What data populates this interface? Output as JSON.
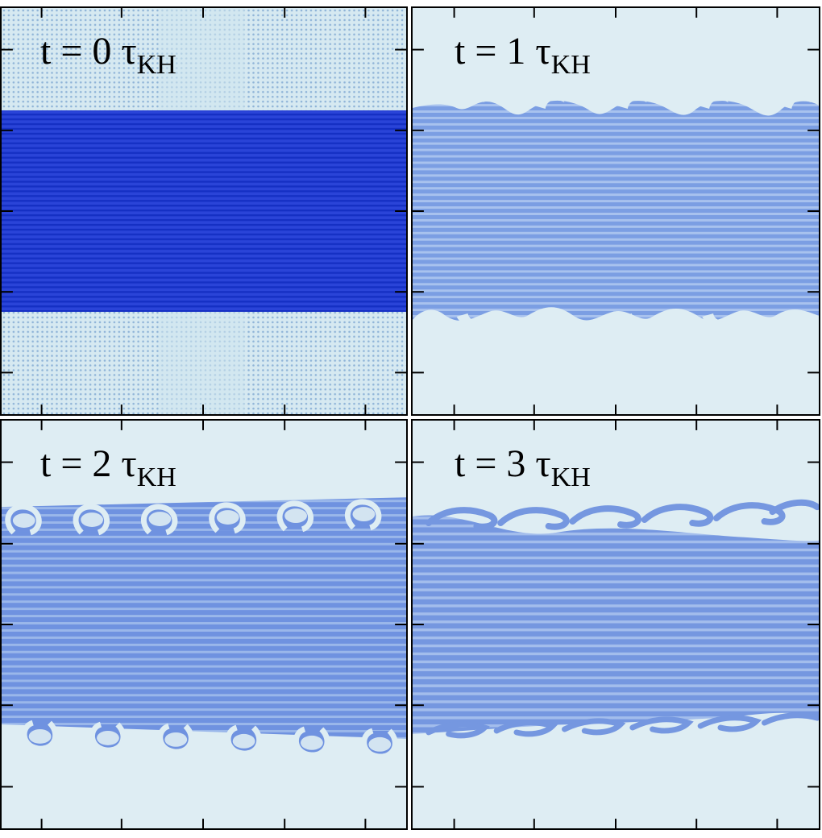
{
  "panels": [
    {
      "prefix": "t = 0 τ",
      "sub": "KH"
    },
    {
      "prefix": "t = 1 τ",
      "sub": "KH"
    },
    {
      "prefix": "t = 2 τ",
      "sub": "KH"
    },
    {
      "prefix": "t = 3 τ",
      "sub": "KH"
    }
  ],
  "colors": {
    "background_fluid": "#deedf3",
    "dense_fluid_initial": "#1f3fd6",
    "dense_fluid_mixed": "#6a8ee0",
    "frame": "#000000"
  }
}
